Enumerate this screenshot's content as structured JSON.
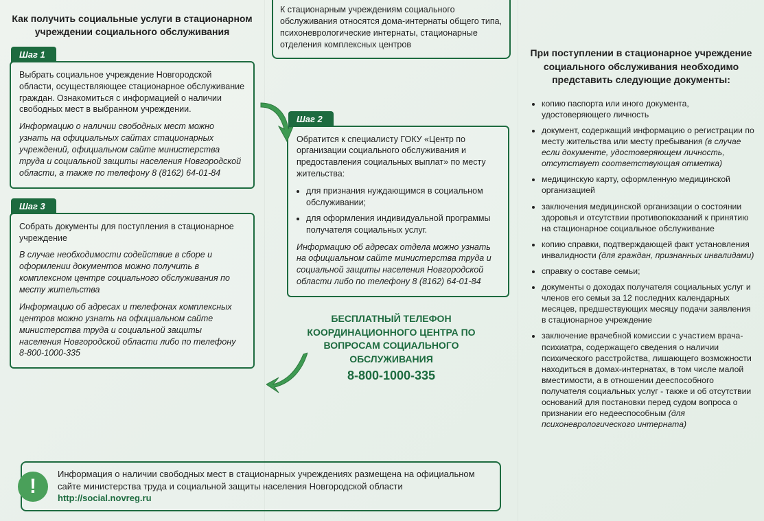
{
  "colors": {
    "green_dark": "#1d6b3f",
    "green_light": "#4aa05a",
    "bg_start": "#eef3ee",
    "bg_end": "#e4eee6",
    "text": "#222222"
  },
  "col1": {
    "title": "Как получить социальные услуги в стационарном учреждении социального обслуживания",
    "step1": {
      "label": "Шаг 1",
      "p1": "Выбрать социальное учреждение Новгородской области, осуществляющее стационарное обслуживание граждан. Ознакомиться с информацией о наличии свободных мест в выбранном учреждении.",
      "p2": "Информацию о наличии свободных мест можно узнать на официальных сайтах стационарных учреждений, официальном сайте министерства труда и социальной защиты населения Новгородской области, а также по телефону 8 (8162) 64-01-84"
    },
    "step3": {
      "label": "Шаг 3",
      "p1": "Собрать документы для поступления в стационарное учреждение",
      "p2": "В случае необходимости содействие в сборе и оформлении документов можно получить в комплексном центре социального обслуживания по месту жительства",
      "p3": "Информацию об адресах и телефонах комплексных центров можно узнать на официальном сайте министерства труда и социальной защиты населения Новгородской области либо по телефону 8-800-1000-335"
    }
  },
  "col2": {
    "top_callout": "К стационарным учреждениям социального обслуживания относятся дома-интернаты общего типа, психоневрологические интернаты, стационарные отделения комплексных центров",
    "step2": {
      "label": "Шаг 2",
      "p1": "Обратится к специалисту ГОКУ «Центр по организации социального обслуживания и предоставления социальных выплат» по месту жительства:",
      "li1": "для признания нуждающимся в социальном обслуживании;",
      "li2": "для оформления индивидуальной программы получателя социальных услуг.",
      "p2": "Информацию об адресах отдела можно узнать на официальном сайте министерства труда и социальной защиты населения Новгородской области либо по телефону  8 (8162) 64-01-84"
    },
    "hotline": {
      "l1": "БЕСПЛАТНЫЙ ТЕЛЕФОН",
      "l2": "КООРДИНАЦИОННОГО ЦЕНТРА ПО",
      "l3": "ВОПРОСАМ СОЦИАЛЬНОГО",
      "l4": "ОБСЛУЖИВАНИЯ",
      "phone": "8-800-1000-335"
    }
  },
  "infobar": {
    "text": "Информация о наличии свободных мест в стационарных учреждениях размещена на официальном сайте министерства труда и социальной защиты населения Новгородской области ",
    "link": "http://social.novreg.ru",
    "mark": "!"
  },
  "col3": {
    "title": "При поступлении в стационарное учреждение социального обслуживания необходимо представить следующие документы:",
    "items": [
      {
        "text": "копию паспорта или иного документа, удостоверяющего личность"
      },
      {
        "text": "документ, содержащий информацию о регистрации по месту жительства или месту пребывания ",
        "paren": "(в случае если документе, удостоверяющем личность, отсутствует соответствующая отметка)"
      },
      {
        "text": "медицинскую карту, оформленную медицинской организацией"
      },
      {
        "text": "заключения медицинской организации о состоянии здоровья и отсутствии противопоказаний к принятию на стационарное социальное обслуживание"
      },
      {
        "text": "копию справки, подтверждающей факт установления инвалидности ",
        "paren": "(для граждан, признанных инвалидами)"
      },
      {
        "text": "справку о составе семьи;"
      },
      {
        "text": "документы о доходах получателя социальных услуг и членов его семьи за 12 последних календарных месяцев, предшествующих месяцу подачи заявления в стационарное учреждение"
      },
      {
        "text": "заключение врачебной комиссии с участием врача-психиатра, содержащего сведения о наличии психического расстройства, лишающего возможности находиться в домах-интернатах, в том числе малой вместимости, а в отношении дееспособного получателя социальных услуг - также и об отсутствии оснований для постановки перед судом вопроса о признании его недееспособным ",
        "paren": "(для психоневрологического интерната)"
      }
    ]
  }
}
